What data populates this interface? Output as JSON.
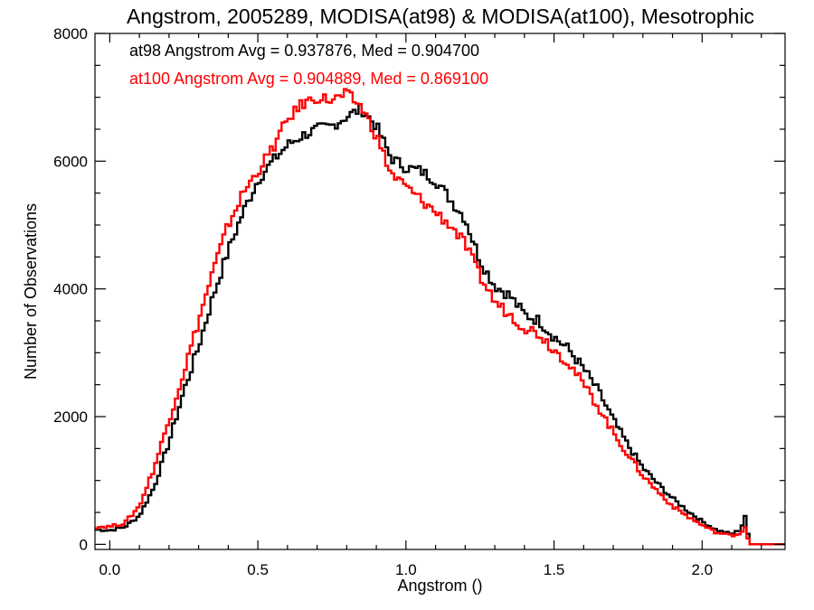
{
  "chart_data": {
    "type": "line",
    "step": true,
    "title": "Angstrom, 2005289, MODISA(at98) & MODISA(at100), Mesotrophic",
    "xlabel": "Angstrom ()",
    "ylabel": "Number of Observations",
    "xlim": [
      -0.05,
      2.28
    ],
    "ylim": [
      -80,
      8000
    ],
    "xticks": [
      0.0,
      0.5,
      1.0,
      1.5,
      2.0
    ],
    "xtick_labels": [
      "0.0",
      "0.5",
      "1.0",
      "1.5",
      "2.0"
    ],
    "yticks": [
      0,
      2000,
      4000,
      6000,
      8000
    ],
    "ytick_labels": [
      "0",
      "2000",
      "4000",
      "6000",
      "8000"
    ],
    "grid": false,
    "annotations": [
      {
        "text": "at98 Angstrom Avg = 0.937876, Med = 0.904700",
        "color": "#000000"
      },
      {
        "text": "at100 Angstrom Avg = 0.904889, Med = 0.869100",
        "color": "#ff0000"
      }
    ],
    "series": [
      {
        "color": "#000000",
        "x": [
          -0.05,
          0.0,
          0.05,
          0.1,
          0.15,
          0.2,
          0.25,
          0.3,
          0.35,
          0.4,
          0.45,
          0.5,
          0.55,
          0.6,
          0.65,
          0.7,
          0.75,
          0.8,
          0.85,
          0.9,
          0.95,
          1.0,
          1.05,
          1.1,
          1.15,
          1.2,
          1.25,
          1.3,
          1.35,
          1.4,
          1.45,
          1.5,
          1.55,
          1.6,
          1.65,
          1.7,
          1.75,
          1.8,
          1.85,
          1.9,
          1.95,
          2.0,
          2.05,
          2.1,
          2.13,
          2.145,
          2.16,
          2.28
        ],
        "y": [
          230,
          220,
          270,
          450,
          900,
          1600,
          2400,
          3100,
          3900,
          4600,
          5200,
          5700,
          6000,
          6250,
          6400,
          6500,
          6550,
          6700,
          6820,
          6550,
          6050,
          5900,
          5850,
          5700,
          5400,
          5100,
          4450,
          4050,
          3900,
          3600,
          3500,
          3250,
          3050,
          2750,
          2400,
          1950,
          1550,
          1200,
          950,
          720,
          530,
          360,
          220,
          160,
          230,
          450,
          0,
          0
        ]
      },
      {
        "color": "#ff0000",
        "x": [
          -0.05,
          0.0,
          0.05,
          0.1,
          0.15,
          0.2,
          0.25,
          0.3,
          0.35,
          0.4,
          0.45,
          0.5,
          0.55,
          0.6,
          0.65,
          0.7,
          0.75,
          0.8,
          0.85,
          0.9,
          0.95,
          1.0,
          1.05,
          1.1,
          1.15,
          1.2,
          1.25,
          1.3,
          1.35,
          1.4,
          1.45,
          1.5,
          1.55,
          1.6,
          1.65,
          1.7,
          1.75,
          1.8,
          1.85,
          1.9,
          1.95,
          2.0,
          2.05,
          2.1,
          2.13,
          2.145,
          2.16,
          2.28
        ],
        "y": [
          270,
          280,
          330,
          600,
          1200,
          1950,
          2700,
          3500,
          4300,
          5000,
          5500,
          5850,
          6200,
          6650,
          6900,
          7000,
          6950,
          7050,
          6850,
          6400,
          5800,
          5600,
          5400,
          5200,
          5000,
          4700,
          4200,
          3800,
          3600,
          3400,
          3300,
          3050,
          2850,
          2500,
          2150,
          1750,
          1400,
          1080,
          830,
          600,
          440,
          300,
          180,
          140,
          170,
          280,
          0,
          0
        ]
      }
    ]
  }
}
